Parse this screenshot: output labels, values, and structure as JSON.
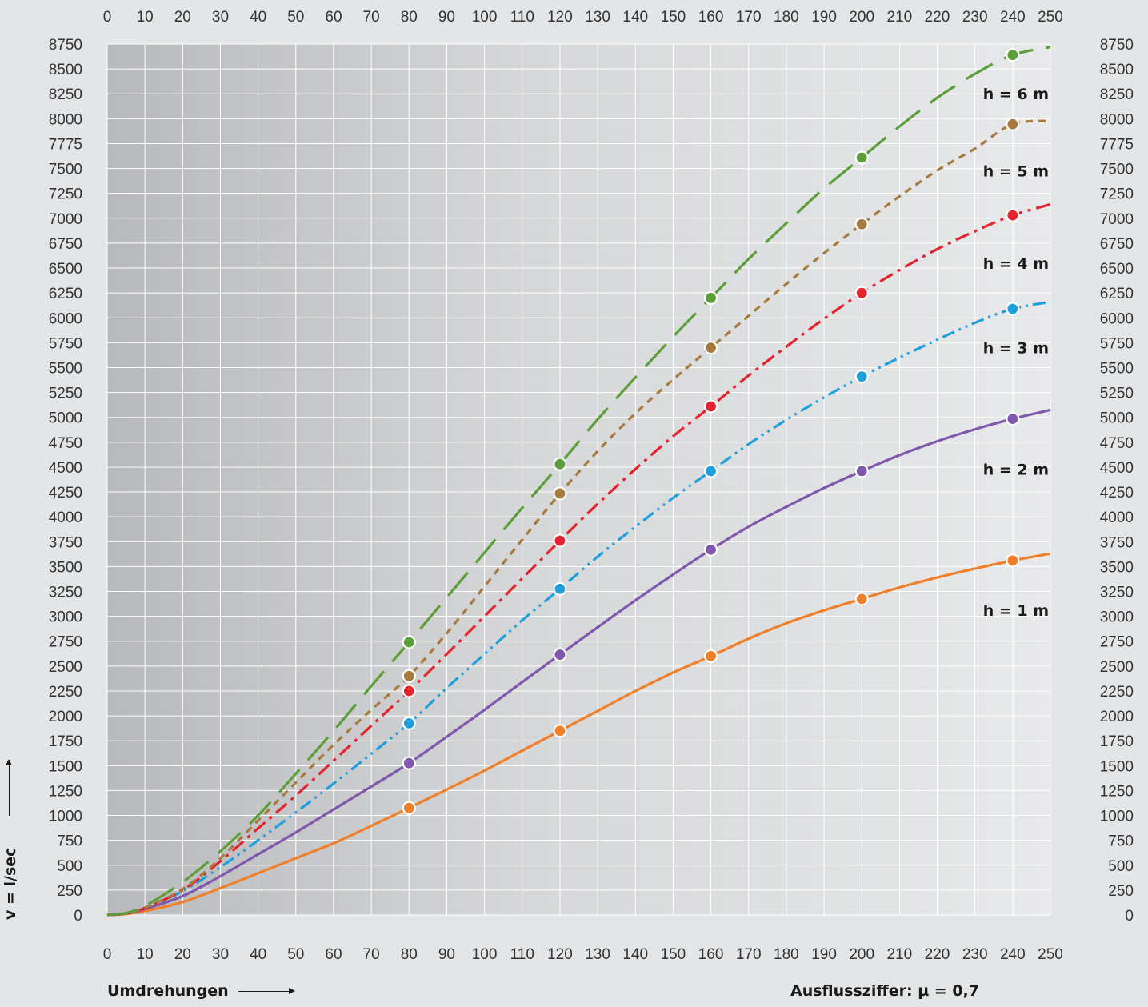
{
  "chart_data": {
    "type": "line",
    "xlabel": "Umdrehungen",
    "ylabel": "v = l/sec",
    "note": "Ausflussziffer: µ = 0,7",
    "xlim": [
      0,
      250
    ],
    "ylim": [
      0,
      8750
    ],
    "x_ticks": [
      0,
      10,
      20,
      30,
      40,
      50,
      60,
      70,
      80,
      90,
      100,
      110,
      120,
      130,
      140,
      150,
      160,
      170,
      180,
      190,
      200,
      210,
      220,
      230,
      240,
      250
    ],
    "y_ticks": [
      0,
      250,
      500,
      750,
      1000,
      1250,
      1500,
      1750,
      2000,
      2250,
      2500,
      2750,
      3000,
      3250,
      3500,
      3750,
      4000,
      4250,
      4500,
      4750,
      5000,
      5250,
      5500,
      5750,
      6000,
      6250,
      6500,
      6750,
      7000,
      7250,
      7500,
      7775,
      8000,
      8250,
      8500,
      8750
    ],
    "grid": true,
    "series": [
      {
        "name": "h = 1 m",
        "color": "#f07f2a",
        "dash": "solid",
        "markers": [
          [
            80,
            1075
          ],
          [
            120,
            1850
          ],
          [
            160,
            2600
          ],
          [
            200,
            3175
          ],
          [
            240,
            3560
          ]
        ],
        "curve": [
          [
            0,
            0
          ],
          [
            5,
            10
          ],
          [
            10,
            40
          ],
          [
            20,
            130
          ],
          [
            30,
            270
          ],
          [
            40,
            420
          ],
          [
            50,
            570
          ],
          [
            60,
            720
          ],
          [
            70,
            895
          ],
          [
            80,
            1075
          ],
          [
            90,
            1260
          ],
          [
            100,
            1450
          ],
          [
            110,
            1650
          ],
          [
            120,
            1850
          ],
          [
            130,
            2050
          ],
          [
            140,
            2250
          ],
          [
            150,
            2435
          ],
          [
            160,
            2600
          ],
          [
            170,
            2775
          ],
          [
            180,
            2930
          ],
          [
            190,
            3060
          ],
          [
            200,
            3175
          ],
          [
            210,
            3290
          ],
          [
            220,
            3390
          ],
          [
            230,
            3480
          ],
          [
            240,
            3560
          ],
          [
            250,
            3630
          ]
        ]
      },
      {
        "name": "h = 2 m",
        "color": "#7f58ad",
        "dash": "solid",
        "markers": [
          [
            80,
            1525
          ],
          [
            120,
            2615
          ],
          [
            160,
            3670
          ],
          [
            200,
            4460
          ],
          [
            240,
            4985
          ]
        ],
        "curve": [
          [
            0,
            0
          ],
          [
            5,
            15
          ],
          [
            10,
            60
          ],
          [
            20,
            190
          ],
          [
            30,
            390
          ],
          [
            40,
            610
          ],
          [
            50,
            830
          ],
          [
            60,
            1060
          ],
          [
            70,
            1290
          ],
          [
            80,
            1525
          ],
          [
            90,
            1790
          ],
          [
            100,
            2060
          ],
          [
            110,
            2340
          ],
          [
            120,
            2615
          ],
          [
            130,
            2890
          ],
          [
            140,
            3160
          ],
          [
            150,
            3420
          ],
          [
            160,
            3670
          ],
          [
            170,
            3900
          ],
          [
            180,
            4100
          ],
          [
            190,
            4290
          ],
          [
            200,
            4460
          ],
          [
            210,
            4620
          ],
          [
            220,
            4760
          ],
          [
            230,
            4880
          ],
          [
            240,
            4985
          ],
          [
            250,
            5075
          ]
        ]
      },
      {
        "name": "h = 3 m",
        "color": "#1fa0dc",
        "dash": "dashdotdot",
        "markers": [
          [
            80,
            1925
          ],
          [
            120,
            3275
          ],
          [
            160,
            4460
          ],
          [
            200,
            5410
          ],
          [
            240,
            6090
          ]
        ],
        "curve": [
          [
            0,
            0
          ],
          [
            5,
            15
          ],
          [
            10,
            70
          ],
          [
            20,
            240
          ],
          [
            30,
            480
          ],
          [
            40,
            750
          ],
          [
            50,
            1030
          ],
          [
            60,
            1320
          ],
          [
            70,
            1620
          ],
          [
            80,
            1925
          ],
          [
            90,
            2280
          ],
          [
            100,
            2620
          ],
          [
            110,
            2960
          ],
          [
            120,
            3275
          ],
          [
            130,
            3600
          ],
          [
            140,
            3900
          ],
          [
            150,
            4190
          ],
          [
            160,
            4460
          ],
          [
            170,
            4730
          ],
          [
            180,
            4975
          ],
          [
            190,
            5200
          ],
          [
            200,
            5410
          ],
          [
            210,
            5600
          ],
          [
            220,
            5780
          ],
          [
            230,
            5950
          ],
          [
            240,
            6090
          ],
          [
            250,
            6160
          ]
        ]
      },
      {
        "name": "h = 4 m",
        "color": "#e5232e",
        "dash": "dashdot",
        "markers": [
          [
            80,
            2250
          ],
          [
            120,
            3760
          ],
          [
            160,
            5110
          ],
          [
            200,
            6250
          ],
          [
            240,
            7030
          ]
        ],
        "curve": [
          [
            0,
            0
          ],
          [
            5,
            15
          ],
          [
            10,
            70
          ],
          [
            20,
            250
          ],
          [
            30,
            540
          ],
          [
            40,
            870
          ],
          [
            50,
            1200
          ],
          [
            60,
            1550
          ],
          [
            70,
            1900
          ],
          [
            80,
            2250
          ],
          [
            90,
            2620
          ],
          [
            100,
            3000
          ],
          [
            110,
            3380
          ],
          [
            120,
            3760
          ],
          [
            130,
            4130
          ],
          [
            140,
            4480
          ],
          [
            150,
            4810
          ],
          [
            160,
            5110
          ],
          [
            170,
            5420
          ],
          [
            180,
            5710
          ],
          [
            190,
            5990
          ],
          [
            200,
            6250
          ],
          [
            210,
            6480
          ],
          [
            220,
            6690
          ],
          [
            230,
            6870
          ],
          [
            240,
            7030
          ],
          [
            250,
            7140
          ]
        ]
      },
      {
        "name": "h = 5 m",
        "color": "#a77b3f",
        "dash": "dotted",
        "markers": [
          [
            80,
            2400
          ],
          [
            120,
            4235
          ],
          [
            160,
            5700
          ],
          [
            200,
            6940
          ],
          [
            240,
            7950
          ]
        ],
        "curve": [
          [
            0,
            0
          ],
          [
            5,
            15
          ],
          [
            10,
            75
          ],
          [
            20,
            260
          ],
          [
            30,
            570
          ],
          [
            40,
            950
          ],
          [
            50,
            1330
          ],
          [
            60,
            1710
          ],
          [
            70,
            2060
          ],
          [
            80,
            2400
          ],
          [
            90,
            2830
          ],
          [
            100,
            3300
          ],
          [
            110,
            3770
          ],
          [
            120,
            4235
          ],
          [
            130,
            4660
          ],
          [
            140,
            5040
          ],
          [
            150,
            5380
          ],
          [
            160,
            5700
          ],
          [
            170,
            6020
          ],
          [
            180,
            6340
          ],
          [
            190,
            6650
          ],
          [
            200,
            6940
          ],
          [
            210,
            7220
          ],
          [
            220,
            7480
          ],
          [
            230,
            7720
          ],
          [
            240,
            7950
          ],
          [
            250,
            7980
          ]
        ]
      },
      {
        "name": "h = 6 m",
        "color": "#5c9e3a",
        "dash": "longdash",
        "markers": [
          [
            80,
            2740
          ],
          [
            120,
            4530
          ],
          [
            160,
            6200
          ],
          [
            200,
            7620
          ],
          [
            240,
            8640
          ]
        ],
        "curve": [
          [
            0,
            0
          ],
          [
            5,
            20
          ],
          [
            10,
            90
          ],
          [
            20,
            330
          ],
          [
            30,
            640
          ],
          [
            40,
            1000
          ],
          [
            50,
            1420
          ],
          [
            60,
            1850
          ],
          [
            70,
            2300
          ],
          [
            80,
            2740
          ],
          [
            90,
            3190
          ],
          [
            100,
            3640
          ],
          [
            110,
            4090
          ],
          [
            120,
            4530
          ],
          [
            130,
            4980
          ],
          [
            140,
            5400
          ],
          [
            150,
            5810
          ],
          [
            160,
            6200
          ],
          [
            170,
            6590
          ],
          [
            180,
            6950
          ],
          [
            190,
            7300
          ],
          [
            200,
            7620
          ],
          [
            210,
            7930
          ],
          [
            220,
            8210
          ],
          [
            230,
            8450
          ],
          [
            240,
            8640
          ],
          [
            250,
            8720
          ]
        ]
      }
    ],
    "curve_labels": [
      {
        "text": "h = 6 m",
        "y": 8250
      },
      {
        "text": "h = 5 m",
        "y": 7475
      },
      {
        "text": "h = 4 m",
        "y": 6550
      },
      {
        "text": "h = 3 m",
        "y": 5700
      },
      {
        "text": "h = 2 m",
        "y": 4480
      },
      {
        "text": "h = 1 m",
        "y": 3060
      }
    ]
  }
}
